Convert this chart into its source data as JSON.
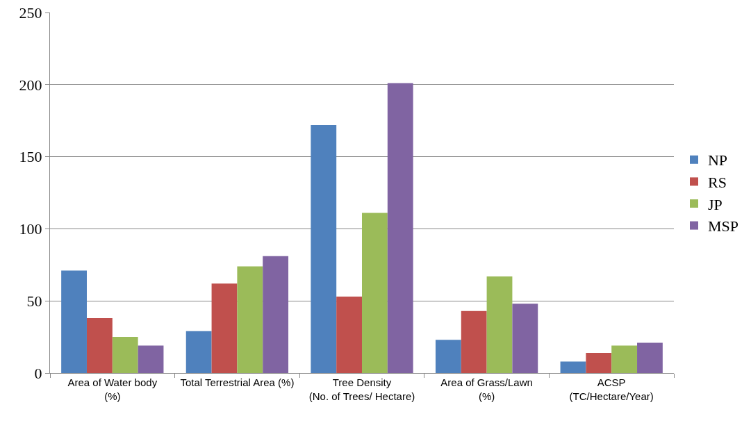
{
  "chart_data": {
    "type": "bar",
    "categories": [
      "Area of Water body\n(%)",
      "Total Terrestrial Area (%)",
      "Tree Density\n(No. of Trees/ Hectare)",
      "Area of Grass/Lawn\n(%)",
      "ACSP\n(TC/Hectare/Year)"
    ],
    "series": [
      {
        "name": "NP",
        "color": "#4f81bd",
        "values": [
          71,
          29,
          172,
          23,
          8
        ]
      },
      {
        "name": "RS",
        "color": "#c0504d",
        "values": [
          38,
          62,
          53,
          43,
          14
        ]
      },
      {
        "name": "JP",
        "color": "#9bbb59",
        "values": [
          25,
          74,
          111,
          67,
          19
        ]
      },
      {
        "name": "MSP",
        "color": "#8064a2",
        "values": [
          19,
          81,
          201,
          48,
          21
        ]
      }
    ],
    "ylim": [
      0,
      250
    ],
    "yticks": [
      0,
      50,
      100,
      150,
      200,
      250
    ],
    "grid": "y",
    "legend": "right"
  }
}
